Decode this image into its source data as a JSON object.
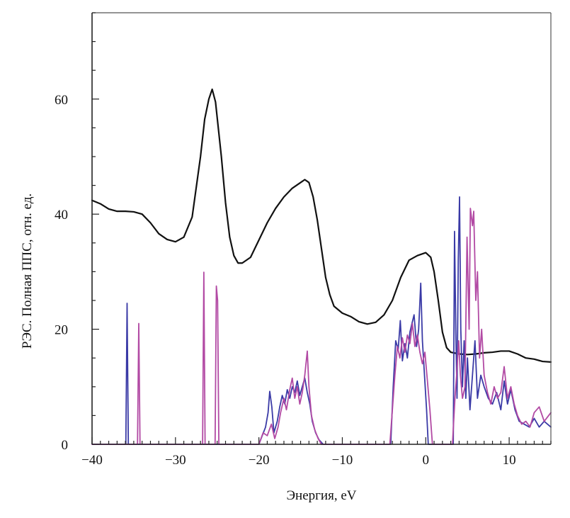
{
  "chart_data": {
    "type": "line",
    "title": "",
    "xlabel": "Энергия, eV",
    "ylabel": "РЭС. Полная ППС, отн. ед.",
    "xlim": [
      -40,
      15
    ],
    "ylim": [
      0,
      75
    ],
    "x_ticks": [
      -40,
      -30,
      -20,
      -10,
      0,
      10
    ],
    "x_tick_labels": [
      "−40",
      "−30",
      "−20",
      "−10",
      "0",
      "10"
    ],
    "y_ticks": [
      0,
      20,
      40,
      60
    ],
    "y_tick_labels": [
      "0",
      "20",
      "40",
      "60"
    ],
    "grid": false,
    "legend": "none",
    "series": [
      {
        "color": "#111111",
        "style": "smooth",
        "points": [
          [
            -40,
            42.4
          ],
          [
            -39,
            41.8
          ],
          [
            -38,
            40.9
          ],
          [
            -37,
            40.5
          ],
          [
            -36,
            40.5
          ],
          [
            -35,
            40.4
          ],
          [
            -34,
            40.0
          ],
          [
            -33,
            38.5
          ],
          [
            -32,
            36.6
          ],
          [
            -31,
            35.6
          ],
          [
            -30,
            35.2
          ],
          [
            -29,
            36.0
          ],
          [
            -28,
            39.5
          ],
          [
            -27,
            50.0
          ],
          [
            -26.5,
            56.5
          ],
          [
            -26,
            60.0
          ],
          [
            -25.6,
            61.7
          ],
          [
            -25.2,
            59.5
          ],
          [
            -24.5,
            50.0
          ],
          [
            -24,
            42.0
          ],
          [
            -23.5,
            36.0
          ],
          [
            -23,
            32.8
          ],
          [
            -22.5,
            31.5
          ],
          [
            -22,
            31.5
          ],
          [
            -21,
            32.5
          ],
          [
            -20,
            35.5
          ],
          [
            -19,
            38.5
          ],
          [
            -18,
            41.0
          ],
          [
            -17,
            43.0
          ],
          [
            -16,
            44.5
          ],
          [
            -15,
            45.5
          ],
          [
            -14.5,
            46.0
          ],
          [
            -14,
            45.5
          ],
          [
            -13.5,
            43.0
          ],
          [
            -13,
            39.0
          ],
          [
            -12.5,
            34.0
          ],
          [
            -12,
            29.0
          ],
          [
            -11.5,
            26.0
          ],
          [
            -11,
            24.0
          ],
          [
            -10,
            22.8
          ],
          [
            -9,
            22.2
          ],
          [
            -8,
            21.3
          ],
          [
            -7,
            20.9
          ],
          [
            -6,
            21.2
          ],
          [
            -5,
            22.5
          ],
          [
            -4,
            25.0
          ],
          [
            -3,
            29.0
          ],
          [
            -2,
            32.0
          ],
          [
            -1,
            32.8
          ],
          [
            0,
            33.3
          ],
          [
            0.6,
            32.5
          ],
          [
            1.0,
            30.0
          ],
          [
            1.5,
            25.0
          ],
          [
            2.0,
            19.5
          ],
          [
            2.5,
            16.8
          ],
          [
            3.0,
            16.0
          ],
          [
            4,
            15.7
          ],
          [
            5,
            15.6
          ],
          [
            6,
            15.7
          ],
          [
            7,
            15.9
          ],
          [
            8,
            16.0
          ],
          [
            9,
            16.2
          ],
          [
            10,
            16.2
          ],
          [
            11,
            15.7
          ],
          [
            12,
            15.0
          ],
          [
            13,
            14.8
          ],
          [
            14,
            14.4
          ],
          [
            15,
            14.3
          ]
        ]
      },
      {
        "color": "#3a3aa6",
        "style": "jagged",
        "points": [
          [
            -40,
            0
          ],
          [
            -35.95,
            0
          ],
          [
            -35.8,
            24.5
          ],
          [
            -35.65,
            0
          ],
          [
            -20.0,
            0
          ],
          [
            -19.6,
            1.5
          ],
          [
            -19.2,
            3.0
          ],
          [
            -18.9,
            5.5
          ],
          [
            -18.7,
            9.2
          ],
          [
            -18.45,
            6.5
          ],
          [
            -18.2,
            2.0
          ],
          [
            -17.8,
            4.0
          ],
          [
            -17.5,
            6.5
          ],
          [
            -17.2,
            8.5
          ],
          [
            -16.9,
            7.0
          ],
          [
            -16.6,
            9.5
          ],
          [
            -16.3,
            8.0
          ],
          [
            -16.0,
            10.0
          ],
          [
            -15.7,
            9.0
          ],
          [
            -15.4,
            11.0
          ],
          [
            -15.1,
            8.5
          ],
          [
            -14.8,
            10.0
          ],
          [
            -14.5,
            11.5
          ],
          [
            -14.2,
            9.0
          ],
          [
            -13.9,
            7.0
          ],
          [
            -13.6,
            4.0
          ],
          [
            -13.2,
            2.0
          ],
          [
            -12.8,
            0.8
          ],
          [
            -12.3,
            0
          ],
          [
            -4.2,
            0
          ],
          [
            -3.9,
            10.0
          ],
          [
            -3.6,
            18.0
          ],
          [
            -3.3,
            16.5
          ],
          [
            -3.05,
            21.5
          ],
          [
            -2.8,
            14.5
          ],
          [
            -2.5,
            17.5
          ],
          [
            -2.2,
            15.0
          ],
          [
            -1.9,
            19.5
          ],
          [
            -1.65,
            21.0
          ],
          [
            -1.4,
            22.5
          ],
          [
            -1.1,
            17.0
          ],
          [
            -0.85,
            20.0
          ],
          [
            -0.6,
            28.0
          ],
          [
            -0.4,
            18.0
          ],
          [
            -0.15,
            12.0
          ],
          [
            0.1,
            6.0
          ],
          [
            0.3,
            0
          ],
          [
            3.3,
            0
          ],
          [
            3.45,
            37.0
          ],
          [
            3.6,
            20.0
          ],
          [
            3.75,
            8.0
          ],
          [
            3.9,
            32.0
          ],
          [
            4.05,
            43.0
          ],
          [
            4.2,
            20.0
          ],
          [
            4.4,
            10.0
          ],
          [
            4.6,
            18.0
          ],
          [
            4.8,
            8.0
          ],
          [
            5.0,
            15.0
          ],
          [
            5.3,
            6.0
          ],
          [
            5.6,
            12.0
          ],
          [
            5.9,
            18.0
          ],
          [
            6.2,
            8.0
          ],
          [
            6.6,
            12.0
          ],
          [
            7.0,
            10.0
          ],
          [
            7.5,
            8.0
          ],
          [
            8.0,
            7.0
          ],
          [
            8.5,
            9.0
          ],
          [
            9.0,
            6.0
          ],
          [
            9.4,
            11.0
          ],
          [
            9.8,
            7.0
          ],
          [
            10.2,
            9.5
          ],
          [
            10.7,
            6.0
          ],
          [
            11.2,
            4.0
          ],
          [
            11.8,
            3.5
          ],
          [
            12.4,
            3.0
          ],
          [
            13.0,
            4.5
          ],
          [
            13.6,
            3.0
          ],
          [
            14.2,
            4.0
          ],
          [
            15,
            3.0
          ]
        ]
      },
      {
        "color": "#b24aa4",
        "style": "jagged",
        "points": [
          [
            -40,
            0
          ],
          [
            -34.55,
            0
          ],
          [
            -34.4,
            21.0
          ],
          [
            -34.25,
            0
          ],
          [
            -26.75,
            0
          ],
          [
            -26.6,
            29.9
          ],
          [
            -26.45,
            0
          ],
          [
            -25.25,
            0
          ],
          [
            -25.1,
            27.5
          ],
          [
            -24.95,
            25.0
          ],
          [
            -24.8,
            0
          ],
          [
            -20.0,
            0
          ],
          [
            -19.5,
            2.0
          ],
          [
            -19.0,
            1.5
          ],
          [
            -18.5,
            3.5
          ],
          [
            -18.1,
            1.0
          ],
          [
            -17.7,
            3.0
          ],
          [
            -17.4,
            5.5
          ],
          [
            -17.0,
            8.0
          ],
          [
            -16.7,
            6.0
          ],
          [
            -16.3,
            9.5
          ],
          [
            -16.0,
            11.5
          ],
          [
            -15.7,
            8.0
          ],
          [
            -15.4,
            10.0
          ],
          [
            -15.1,
            7.0
          ],
          [
            -14.8,
            9.0
          ],
          [
            -14.5,
            12.0
          ],
          [
            -14.2,
            16.2
          ],
          [
            -14.0,
            10.0
          ],
          [
            -13.7,
            5.0
          ],
          [
            -13.3,
            2.5
          ],
          [
            -12.9,
            1.0
          ],
          [
            -12.5,
            0
          ],
          [
            -4.3,
            0
          ],
          [
            -4.0,
            6.0
          ],
          [
            -3.7,
            12.0
          ],
          [
            -3.4,
            17.0
          ],
          [
            -3.1,
            15.0
          ],
          [
            -2.8,
            18.5
          ],
          [
            -2.5,
            16.0
          ],
          [
            -2.2,
            19.0
          ],
          [
            -1.9,
            17.5
          ],
          [
            -1.6,
            21.0
          ],
          [
            -1.3,
            17.0
          ],
          [
            -1.0,
            19.0
          ],
          [
            -0.7,
            16.0
          ],
          [
            -0.4,
            14.0
          ],
          [
            -0.1,
            16.0
          ],
          [
            0.2,
            11.0
          ],
          [
            0.5,
            6.0
          ],
          [
            0.8,
            0
          ],
          [
            3.2,
            0
          ],
          [
            3.5,
            8.0
          ],
          [
            3.7,
            12.0
          ],
          [
            3.95,
            18.0
          ],
          [
            4.15,
            12.0
          ],
          [
            4.4,
            8.0
          ],
          [
            4.7,
            10.0
          ],
          [
            4.95,
            36.0
          ],
          [
            5.2,
            20.0
          ],
          [
            5.35,
            41.0
          ],
          [
            5.6,
            38.0
          ],
          [
            5.75,
            40.5
          ],
          [
            6.0,
            25.0
          ],
          [
            6.2,
            30.0
          ],
          [
            6.45,
            15.0
          ],
          [
            6.7,
            20.0
          ],
          [
            7.0,
            12.0
          ],
          [
            7.4,
            9.0
          ],
          [
            7.8,
            7.0
          ],
          [
            8.2,
            10.0
          ],
          [
            8.6,
            8.0
          ],
          [
            9.0,
            9.0
          ],
          [
            9.4,
            13.5
          ],
          [
            9.8,
            8.0
          ],
          [
            10.2,
            10.0
          ],
          [
            10.6,
            7.0
          ],
          [
            11.0,
            5.0
          ],
          [
            11.5,
            3.5
          ],
          [
            12.0,
            4.0
          ],
          [
            12.5,
            3.0
          ],
          [
            13.0,
            5.5
          ],
          [
            13.6,
            6.5
          ],
          [
            14.2,
            4.0
          ],
          [
            15,
            5.5
          ]
        ]
      }
    ]
  }
}
